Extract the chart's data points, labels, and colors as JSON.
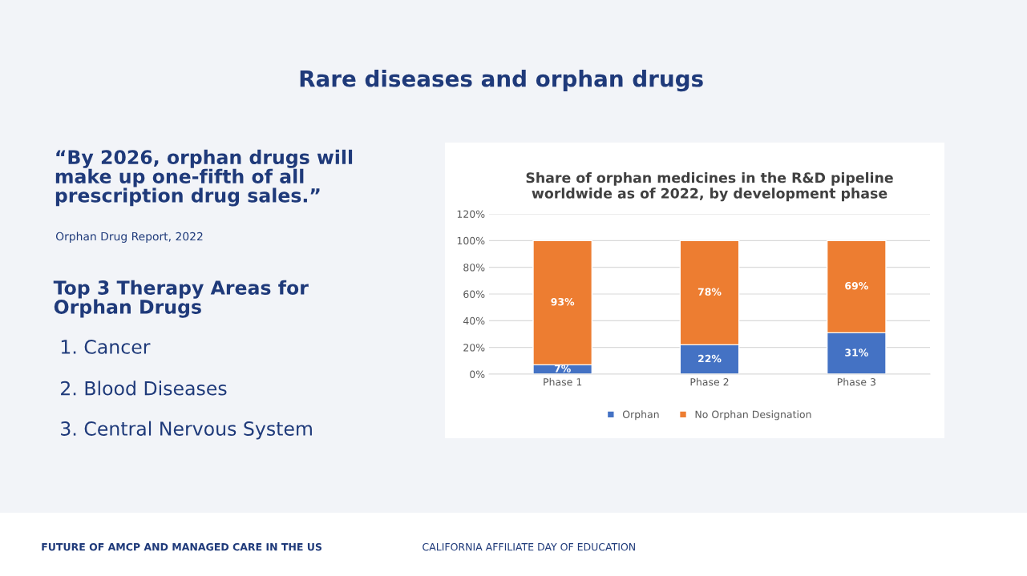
{
  "chart_data": {
    "type": "bar",
    "stacked": true,
    "title": "Share of orphan medicines in the R&D pipeline\nworldwide as of 2022, by development phase",
    "categories": [
      "Phase 1",
      "Phase 2",
      "Phase 3"
    ],
    "series": [
      {
        "name": "Orphan",
        "color": "#4472c4",
        "values": [
          7,
          22,
          31
        ],
        "value_labels": [
          "7%",
          "22%",
          "31%"
        ]
      },
      {
        "name": "No Orphan Designation",
        "color": "#ed7d31",
        "values": [
          93,
          78,
          69
        ],
        "value_labels": [
          "93%",
          "78%",
          "69%"
        ]
      }
    ],
    "ylim": [
      0,
      120
    ],
    "yticks": [
      {
        "value": 0,
        "label": "0%"
      },
      {
        "value": 20,
        "label": "20%"
      },
      {
        "value": 40,
        "label": "40%"
      },
      {
        "value": 60,
        "label": "60%"
      },
      {
        "value": 80,
        "label": "80%"
      },
      {
        "value": 100,
        "label": "100%"
      },
      {
        "value": 120,
        "label": "120%"
      }
    ],
    "grid": "y",
    "legend": "bottom",
    "annotations": [
      "Rare diseases and orphan drugs",
      "“By 2026, orphan drugs will\nmake up one-fifth of all\nprescription drug sales.”",
      "Orphan Drug Report, 2022",
      "Top 3 Therapy Areas for\nOrphan Drugs",
      "1. Cancer",
      "2. Blood Diseases",
      "3. Central Nervous System",
      "FUTURE OF AMCP AND MANAGED CARE IN THE US",
      "CALIFORNIA AFFILIATE DAY OF EDUCATION"
    ]
  }
}
